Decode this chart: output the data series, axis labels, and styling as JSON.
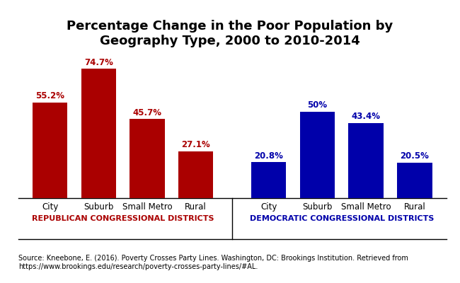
{
  "title": "Percentage Change in the Poor Population by\nGeography Type, 2000 to 2010-2014",
  "rep_values": [
    55.2,
    74.7,
    45.7,
    27.1
  ],
  "dem_values": [
    20.8,
    50.0,
    43.4,
    20.5
  ],
  "rep_labels": [
    "55.2%",
    "74.7%",
    "45.7%",
    "27.1%"
  ],
  "dem_labels": [
    "20.8%",
    "50%",
    "43.4%",
    "20.5%"
  ],
  "categories": [
    "City",
    "Suburb",
    "Small Metro",
    "Rural"
  ],
  "rep_color": "#aa0000",
  "dem_color": "#0000aa",
  "rep_group_label": "REPUBLICAN CONGRESSIONAL DISTRICTS",
  "dem_group_label": "DEMOCRATIC CONGRESSIONAL DISTRICTS",
  "source_text": "Source: Kneebone, E. (2016). Poverty Crosses Party Lines. Washington, DC: Brookings Institution. Retrieved from\nhttps://www.brookings.edu/research/poverty-crosses-party-lines/#AL.",
  "ylim": [
    0,
    85
  ],
  "title_fontsize": 13,
  "label_fontsize": 8.5,
  "cat_fontsize": 8.5,
  "group_label_fontsize": 8.0,
  "source_fontsize": 7.0,
  "bar_width": 0.72
}
